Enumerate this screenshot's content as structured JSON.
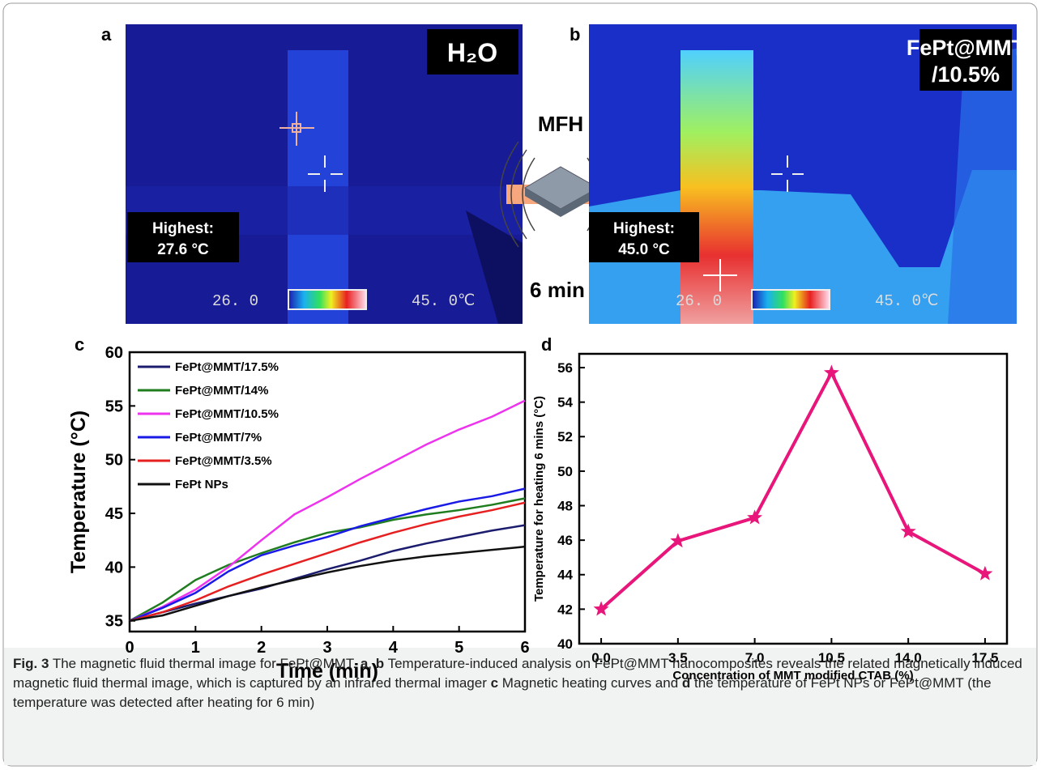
{
  "figure": {
    "panel_a": {
      "letter": "a",
      "tag": "H₂O",
      "highest": "Highest:",
      "highest_value": "27.6 °C",
      "scale_min": "26. 0",
      "scale_max": "45. 0℃"
    },
    "panel_b": {
      "letter": "b",
      "tag_line1": "FePt@MMT",
      "tag_line2": "/10.5%",
      "highest": "Highest:",
      "highest_value": "45.0 °C",
      "scale_min": "26. 0",
      "scale_max": "45. 0℃"
    },
    "arrow_top": "MFH",
    "arrow_bottom": "6 min",
    "panel_c_letter": "c",
    "panel_d_letter": "d",
    "caption": [
      "Fig. 3",
      "  The magnetic fluid thermal image for FePt@MMT. ",
      "a",
      ", ",
      "b",
      " Temperature-induced analysis on FePt@MMT nanocomposites reveals the related magnetically induced magnetic fluid thermal image, which is captured by an infrared thermal imager ",
      "c",
      " Magnetic heating curves and ",
      "d",
      " the temperature of FePt NPs or FePt@MMT (the temperature was detected after heating for 6 min)"
    ]
  },
  "chart_data": [
    {
      "type": "line",
      "x_label": "Time (min)",
      "y_label": "Temperature (°C)",
      "x": [
        0,
        0.5,
        1,
        1.5,
        2,
        2.5,
        3,
        3.5,
        4,
        4.5,
        5,
        5.5,
        6
      ],
      "series": [
        {
          "name": "FePt@MMT/17.5%",
          "color": "#1c1c6e",
          "values": [
            35,
            35.8,
            36.6,
            37.3,
            38,
            38.9,
            39.8,
            40.6,
            41.5,
            42.2,
            42.8,
            43.4,
            43.9
          ]
        },
        {
          "name": "FePt@MMT/14%",
          "color": "#1f7d1f",
          "values": [
            35,
            36.7,
            38.8,
            40.2,
            41.3,
            42.3,
            43.2,
            43.7,
            44.4,
            44.9,
            45.3,
            45.8,
            46.4
          ]
        },
        {
          "name": "FePt@MMT/10.5%",
          "color": "#ee33ee",
          "values": [
            35,
            36.3,
            37.9,
            40,
            42.5,
            44.9,
            46.5,
            48.2,
            49.8,
            51.4,
            52.8,
            54,
            55.5
          ]
        },
        {
          "name": "FePt@MMT/7%",
          "color": "#1a1ae6",
          "values": [
            35,
            36.2,
            37.6,
            39.6,
            41.1,
            42,
            42.8,
            43.8,
            44.6,
            45.4,
            46.1,
            46.6,
            47.3
          ]
        },
        {
          "name": "FePt@MMT/3.5%",
          "color": "#e62020",
          "values": [
            35,
            35.8,
            36.9,
            38.2,
            39.3,
            40.3,
            41.3,
            42.3,
            43.2,
            44,
            44.7,
            45.3,
            46
          ]
        },
        {
          "name": "FePt NPs",
          "color": "#111111",
          "values": [
            35,
            35.5,
            36.4,
            37.3,
            38.1,
            38.8,
            39.5,
            40.1,
            40.6,
            41,
            41.3,
            41.6,
            41.9
          ]
        }
      ],
      "xlim": [
        0,
        6
      ],
      "xticks": [
        0,
        1,
        2,
        3,
        4,
        5,
        6
      ],
      "ylim": [
        34,
        60
      ],
      "yticks": [
        35,
        40,
        45,
        50,
        55,
        60
      ],
      "legend": "top-left"
    },
    {
      "type": "line",
      "marker": "star",
      "color": "#e8157a",
      "x_label": "Concentration of MMT modified CTAB (%)",
      "y_label": "Temperature for heating 6 mins (°C)",
      "x": [
        0,
        3.5,
        7,
        10.5,
        14,
        17.5
      ],
      "values": [
        42.0,
        45.95,
        47.3,
        55.7,
        46.5,
        44.05
      ],
      "xlim": [
        -1,
        18.5
      ],
      "xticks": [
        {
          "value": 0,
          "label": "0.0"
        },
        {
          "value": 3.5,
          "label": "3.5"
        },
        {
          "value": 7,
          "label": "7.0"
        },
        {
          "value": 10.5,
          "label": "10.5"
        },
        {
          "value": 14,
          "label": "14.0"
        },
        {
          "value": 17.5,
          "label": "17.5"
        }
      ],
      "ylim": [
        40,
        56.8
      ],
      "yticks": [
        40,
        42,
        44,
        46,
        48,
        50,
        52,
        54,
        56
      ]
    }
  ]
}
